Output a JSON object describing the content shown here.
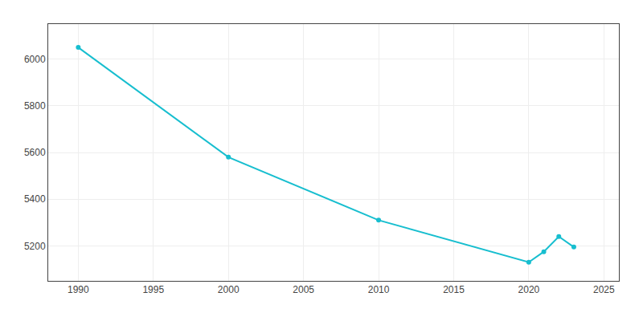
{
  "chart_data": {
    "type": "line",
    "x": [
      1990,
      2000,
      2010,
      2020,
      2021,
      2022,
      2023
    ],
    "values": [
      6050,
      5580,
      5310,
      5130,
      5175,
      5240,
      5195
    ],
    "color": "#17BECF",
    "marker": "circle",
    "xlim": [
      1988,
      2026
    ],
    "ylim": [
      5050,
      6150
    ],
    "xticks": [
      1990,
      1995,
      2000,
      2005,
      2010,
      2015,
      2020,
      2025
    ],
    "yticks": [
      5200,
      5400,
      5600,
      5800,
      6000
    ],
    "grid": true
  }
}
